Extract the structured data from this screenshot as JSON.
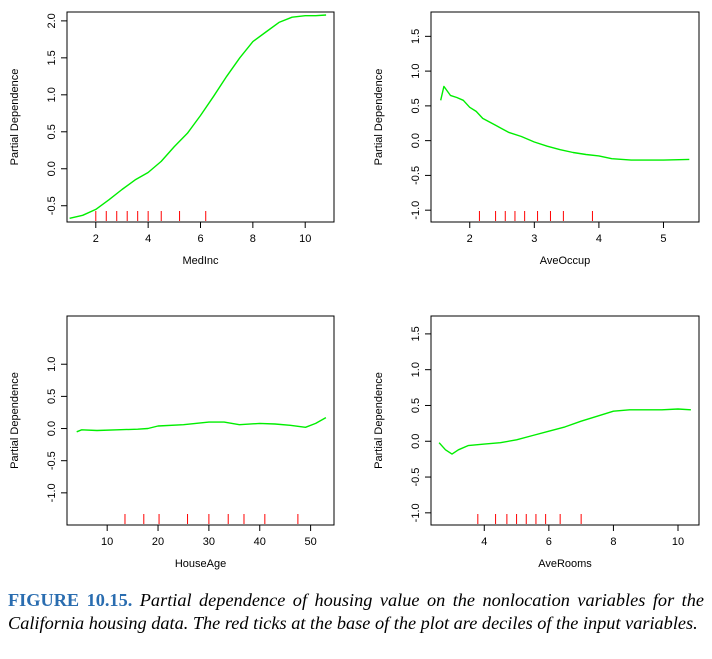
{
  "caption": {
    "label": "FIGURE 10.15.",
    "text": "Partial dependence of housing value on the nonlocation variables for the California housing data. The red ticks at the base of the plot are deciles of the input variables."
  },
  "colors": {
    "curve": "#00ee00",
    "rug": "#ff0000",
    "axis": "#000000"
  },
  "chart_data": [
    {
      "type": "line",
      "xlabel": "MedInc",
      "ylabel": "Partial Dependence",
      "xticks": [
        "2",
        "4",
        "6",
        "8",
        "10"
      ],
      "yticks": [
        "-0.5",
        "0.0",
        "0.5",
        "1.0",
        "1.5",
        "2.0"
      ],
      "xlim": [
        0.9,
        11.1
      ],
      "ylim": [
        -0.72,
        2.12
      ],
      "series": [
        {
          "x": [
            1.0,
            1.5,
            2.0,
            2.5,
            3.0,
            3.5,
            4.0,
            4.5,
            5.0,
            5.5,
            6.0,
            6.5,
            7.0,
            7.5,
            8.0,
            8.5,
            9.0,
            9.5,
            10.0,
            10.4,
            10.8
          ],
          "y": [
            -0.67,
            -0.63,
            -0.55,
            -0.42,
            -0.28,
            -0.15,
            -0.05,
            0.1,
            0.3,
            0.48,
            0.72,
            0.98,
            1.25,
            1.5,
            1.72,
            1.85,
            1.98,
            2.05,
            2.07,
            2.07,
            2.08
          ]
        }
      ],
      "rug": [
        2.0,
        2.4,
        2.8,
        3.2,
        3.6,
        4.0,
        4.5,
        5.2,
        6.2
      ]
    },
    {
      "type": "line",
      "xlabel": "AveOccup",
      "ylabel": "Partial Dependence",
      "xticks": [
        "2",
        "3",
        "4",
        "5"
      ],
      "yticks": [
        "-1.0",
        "-0.5",
        "0.0",
        "0.5",
        "1.0",
        "1.5"
      ],
      "xlim": [
        1.4,
        5.55
      ],
      "ylim": [
        -1.17,
        1.85
      ],
      "series": [
        {
          "x": [
            1.55,
            1.6,
            1.7,
            1.8,
            1.9,
            2.0,
            2.1,
            2.2,
            2.4,
            2.6,
            2.8,
            3.0,
            3.2,
            3.4,
            3.6,
            3.8,
            4.0,
            4.2,
            4.5,
            5.0,
            5.4
          ],
          "y": [
            0.58,
            0.78,
            0.65,
            0.62,
            0.58,
            0.48,
            0.42,
            0.32,
            0.22,
            0.12,
            0.06,
            -0.02,
            -0.08,
            -0.13,
            -0.17,
            -0.2,
            -0.22,
            -0.26,
            -0.28,
            -0.28,
            -0.27
          ]
        }
      ],
      "rug": [
        2.15,
        2.4,
        2.55,
        2.7,
        2.85,
        3.05,
        3.25,
        3.45,
        3.9
      ]
    },
    {
      "type": "line",
      "xlabel": "HouseAge",
      "ylabel": "Partial Dependence",
      "xticks": [
        "10",
        "20",
        "30",
        "40",
        "50"
      ],
      "yticks": [
        "-1.0",
        "-0.5",
        "0.0",
        "0.5",
        "1.0"
      ],
      "xlim": [
        2.1,
        54.6
      ],
      "ylim": [
        -1.5,
        1.75
      ],
      "series": [
        {
          "x": [
            4,
            5,
            8,
            12,
            16,
            18,
            20,
            25,
            30,
            33,
            36,
            40,
            43,
            46,
            49,
            51,
            53
          ],
          "y": [
            -0.05,
            -0.02,
            -0.03,
            -0.02,
            -0.01,
            0.0,
            0.04,
            0.06,
            0.1,
            0.1,
            0.06,
            0.08,
            0.07,
            0.05,
            0.02,
            0.08,
            0.17
          ]
        }
      ],
      "rug": [
        13.5,
        17.2,
        20.2,
        25.8,
        30.0,
        33.8,
        36.9,
        41.0,
        47.5
      ]
    },
    {
      "type": "line",
      "xlabel": "AveRooms",
      "ylabel": "Partial Dependence",
      "xticks": [
        "4",
        "6",
        "8",
        "10"
      ],
      "yticks": [
        "-1.0",
        "-0.5",
        "0.0",
        "0.5",
        "1.0",
        "1.5"
      ],
      "xlim": [
        2.35,
        10.65
      ],
      "ylim": [
        -1.17,
        1.75
      ],
      "series": [
        {
          "x": [
            2.6,
            2.8,
            3.0,
            3.2,
            3.5,
            4.0,
            4.5,
            5.0,
            5.5,
            6.0,
            6.5,
            7.0,
            7.5,
            8.0,
            8.5,
            9.0,
            9.5,
            10.0,
            10.4
          ],
          "y": [
            -0.02,
            -0.12,
            -0.18,
            -0.12,
            -0.06,
            -0.04,
            -0.02,
            0.02,
            0.08,
            0.14,
            0.2,
            0.28,
            0.35,
            0.42,
            0.44,
            0.44,
            0.44,
            0.45,
            0.44
          ]
        }
      ],
      "rug": [
        3.8,
        4.35,
        4.7,
        5.0,
        5.3,
        5.6,
        5.9,
        6.35,
        7.0
      ]
    }
  ]
}
